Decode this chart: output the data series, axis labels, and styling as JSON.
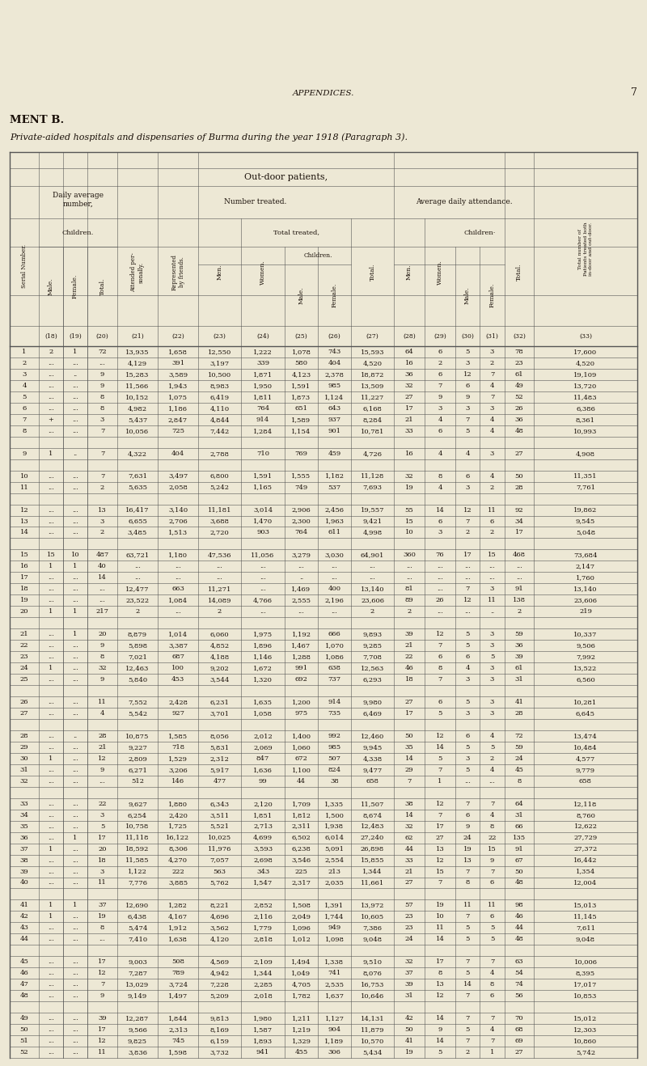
{
  "page_num": "7",
  "title_top": "APPENDICES.",
  "title_left": "MENT B.",
  "subtitle": "Private-aided hospitals and dispensaries of Burma during the year 1918 (Paragraph 3).",
  "section_header": "Out-door patients.",
  "bg_color": "#ede8d5",
  "text_color": "#1a1009",
  "rows": [
    [
      "1",
      "2",
      "1",
      "72",
      "13,935",
      "1,658",
      "12,550",
      "1,222",
      "1,078",
      "743",
      "15,593",
      "64",
      "6",
      "5",
      "3",
      "78",
      "17,600"
    ],
    [
      "2",
      "...",
      "...",
      "...",
      "4,129",
      "391",
      "3,197",
      "339",
      "580",
      "404",
      "4,520",
      "16",
      "2",
      "3",
      "2",
      "23",
      "4,520"
    ],
    [
      "3",
      "...",
      "..",
      "9",
      "15,283",
      "3,589",
      "10,500",
      "1,871",
      "4,123",
      "2,378",
      "18,872",
      "36",
      "6",
      "12",
      "7",
      "61",
      "19,109"
    ],
    [
      "4",
      "...",
      "...",
      "9",
      "11,566",
      "1,943",
      "8,983",
      "1,950",
      "1,591",
      "985",
      "13,509",
      "32",
      "7",
      "6",
      "4",
      "49",
      "13,720"
    ],
    [
      "5",
      "...",
      "...",
      "8",
      "10,152",
      "1,075",
      "6,419",
      "1,811",
      "1,873",
      "1,124",
      "11,227",
      "27",
      "9",
      "9",
      "7",
      "52",
      "11,483"
    ],
    [
      "6",
      "...",
      "...",
      "8",
      "4,982",
      "1,186",
      "4,110",
      "764",
      "651",
      "643",
      "6,168",
      "17",
      "3",
      "3",
      "3",
      "26",
      "6,386"
    ],
    [
      "7",
      "+",
      "...",
      "3",
      "5,437",
      "2,847",
      "4,844",
      "914",
      "1,589",
      "937",
      "8,284",
      "21",
      "4",
      "7",
      "4",
      "36",
      "8,361"
    ],
    [
      "8",
      "...",
      "...",
      "7",
      "10,056",
      "725",
      "7,442",
      "1,284",
      "1,154",
      "901",
      "10,781",
      "33",
      "6",
      "5",
      "4",
      "48",
      "10,993"
    ],
    [
      "",
      "",
      "",
      "",
      "",
      "",
      "",
      "",
      "",
      "",
      "",
      "",
      "",
      "",
      "",
      "",
      ""
    ],
    [
      "9",
      "1",
      "..",
      "7",
      "4,322",
      "404",
      "2,788",
      "710",
      "769",
      "459",
      "4,726",
      "16",
      "4",
      "4",
      "3",
      "27",
      "4,908"
    ],
    [
      "",
      "",
      "",
      "",
      "",
      "",
      "",
      "",
      "",
      "",
      "",
      "",
      "",
      "",
      "",
      "",
      ""
    ],
    [
      "10",
      "...",
      "...",
      "7",
      "7,631",
      "3,497",
      "6,800",
      "1,591",
      "1,555",
      "1,182",
      "11,128",
      "32",
      "8",
      "6",
      "4",
      "50",
      "11,351"
    ],
    [
      "11",
      "...",
      "...",
      "2",
      "5,635",
      "2,058",
      "5,242",
      "1,165",
      "749",
      "537",
      "7,693",
      "19",
      "4",
      "3",
      "2",
      "28",
      "7,761"
    ],
    [
      "",
      "",
      "",
      "",
      "",
      "",
      "",
      "",
      "",
      "",
      "",
      "",
      "",
      "",
      "",
      "",
      ""
    ],
    [
      "12",
      "...",
      "...",
      "13",
      "16,417",
      "3,140",
      "11,181",
      "3,014",
      "2,906",
      "2,456",
      "19,557",
      "55",
      "14",
      "12",
      "11",
      "92",
      "19,862"
    ],
    [
      "13",
      "...",
      "...",
      "3",
      "6,655",
      "2,706",
      "3,688",
      "1,470",
      "2,300",
      "1,963",
      "9,421",
      "15",
      "6",
      "7",
      "6",
      "34",
      "9,545"
    ],
    [
      "14",
      "...",
      "...",
      "2",
      "3,485",
      "1,513",
      "2,720",
      "903",
      "764",
      "611",
      "4,998",
      "10",
      "3",
      "2",
      "2",
      "17",
      "5,048"
    ],
    [
      "",
      "",
      "",
      "",
      "",
      "",
      "",
      "",
      "",
      "",
      "",
      "",
      "",
      "",
      "",
      "",
      ""
    ],
    [
      "15",
      "15",
      "10",
      "487",
      "63,721",
      "1,180",
      "47,536",
      "11,056",
      "3,279",
      "3,030",
      "64,901",
      "360",
      "76",
      "17",
      "15",
      "468",
      "73,684"
    ],
    [
      "16",
      "1",
      "1",
      "40",
      "...",
      "...",
      "...",
      "...",
      "...",
      "...",
      "...",
      "...",
      "...",
      "...",
      "...",
      "...",
      "2,147"
    ],
    [
      "17",
      "...",
      "...",
      "14",
      "...",
      "...",
      "...",
      "...",
      "..",
      "...",
      "...",
      "...",
      "...",
      "...",
      "...",
      "...",
      "1,760"
    ],
    [
      "18",
      "...",
      "...",
      "...",
      "12,477",
      "663",
      "11,271",
      "...",
      "1,469",
      "400",
      "13,140",
      "81",
      "...",
      "7",
      "3",
      "91",
      "13,140"
    ],
    [
      "19",
      "...",
      "...",
      "...",
      "23,522",
      "1,084",
      "14,089",
      "4,766",
      "2,555",
      "2,196",
      "23,606",
      "89",
      "26",
      "12",
      "11",
      "138",
      "23,606"
    ],
    [
      "20",
      "1",
      "1",
      "217",
      "2",
      "...",
      "2",
      "...",
      "...",
      "...",
      "2",
      "2",
      "...",
      "...",
      "..",
      "2",
      "219"
    ],
    [
      "",
      "",
      "",
      "",
      "",
      "",
      "",
      "",
      "",
      "",
      "",
      "",
      "",
      "",
      "",
      "",
      ""
    ],
    [
      "21",
      "...",
      "1",
      "20",
      "8,879",
      "1,014",
      "6,060",
      "1,975",
      "1,192",
      "666",
      "9,893",
      "39",
      "12",
      "5",
      "3",
      "59",
      "10,337"
    ],
    [
      "22",
      "...",
      "...",
      "9",
      "5,898",
      "3,387",
      "4,852",
      "1,896",
      "1,467",
      "1,070",
      "9,285",
      "21",
      "7",
      "5",
      "3",
      "36",
      "9,506"
    ],
    [
      "23",
      "...",
      "...",
      "8",
      "7,021",
      "687",
      "4,188",
      "1,146",
      "1,288",
      "1,086",
      "7,708",
      "22",
      "6",
      "6",
      "5",
      "39",
      "7,992"
    ],
    [
      "24",
      "1",
      "...",
      "32",
      "12,463",
      "100",
      "9,202",
      "1,672",
      "991",
      "638",
      "12,563",
      "46",
      "8",
      "4",
      "3",
      "61",
      "13,522"
    ],
    [
      "25",
      "...",
      "...",
      "9",
      "5,840",
      "453",
      "3,544",
      "1,320",
      "692",
      "737",
      "6,293",
      "18",
      "7",
      "3",
      "3",
      "31",
      "6,560"
    ],
    [
      "",
      "",
      "",
      "",
      "",
      "",
      "",
      "",
      "",
      "",
      "",
      "",
      "",
      "",
      "",
      "",
      ""
    ],
    [
      "26",
      "...",
      "...",
      "11",
      "7,552",
      "2,428",
      "6,231",
      "1,635",
      "1,200",
      "914",
      "9,980",
      "27",
      "6",
      "5",
      "3",
      "41",
      "10,281"
    ],
    [
      "27",
      "...",
      "...",
      "4",
      "5,542",
      "927",
      "3,701",
      "1,058",
      "975",
      "735",
      "6,469",
      "17",
      "5",
      "3",
      "3",
      "28",
      "6,645"
    ],
    [
      "",
      "",
      "",
      "",
      "",
      "",
      "",
      "",
      "",
      "",
      "",
      "",
      "",
      "",
      "",
      "",
      ""
    ],
    [
      "28",
      "...",
      "..",
      "28",
      "10,875",
      "1,585",
      "8,056",
      "2,012",
      "1,400",
      "992",
      "12,460",
      "50",
      "12",
      "6",
      "4",
      "72",
      "13,474"
    ],
    [
      "29",
      "...",
      "...",
      "21",
      "9,227",
      "718",
      "5,831",
      "2,069",
      "1,060",
      "985",
      "9,945",
      "35",
      "14",
      "5",
      "5",
      "59",
      "10,484"
    ],
    [
      "30",
      "1",
      "...",
      "12",
      "2,809",
      "1,529",
      "2,312",
      "847",
      "672",
      "507",
      "4,338",
      "14",
      "5",
      "3",
      "2",
      "24",
      "4,577"
    ],
    [
      "31",
      "...",
      "...",
      "9",
      "6,271",
      "3,206",
      "5,917",
      "1,636",
      "1,100",
      "824",
      "9,477",
      "29",
      "7",
      "5",
      "4",
      "45",
      "9,779"
    ],
    [
      "32",
      "...",
      "...",
      "...",
      "512",
      "146",
      "477",
      "99",
      "44",
      "38",
      "658",
      "7",
      "1",
      "...",
      "...",
      "8",
      "658"
    ],
    [
      "",
      "",
      "",
      "",
      "",
      "",
      "",
      "",
      "",
      "",
      "",
      "",
      "",
      "",
      "",
      "",
      ""
    ],
    [
      "33",
      "...",
      "...",
      "22",
      "9,627",
      "1,880",
      "6,343",
      "2,120",
      "1,709",
      "1,335",
      "11,507",
      "38",
      "12",
      "7",
      "7",
      "64",
      "12,118"
    ],
    [
      "34",
      "...",
      "...",
      "3",
      "6,254",
      "2,420",
      "3,511",
      "1,851",
      "1,812",
      "1,500",
      "8,674",
      "14",
      "7",
      "6",
      "4",
      "31",
      "8,760"
    ],
    [
      "35",
      "...",
      "...",
      "5",
      "10,758",
      "1,725",
      "5,521",
      "2,713",
      "2,311",
      "1,938",
      "12,483",
      "32",
      "17",
      "9",
      "8",
      "66",
      "12,622"
    ],
    [
      "36",
      "...",
      "1",
      "17",
      "11,118",
      "16,122",
      "10,025",
      "4,699",
      "6,502",
      "6,014",
      "27,240",
      "62",
      "27",
      "24",
      "22",
      "135",
      "27,729"
    ],
    [
      "37",
      "1",
      "...",
      "20",
      "18,592",
      "8,306",
      "11,976",
      "3,593",
      "6,238",
      "5,091",
      "26,898",
      "44",
      "13",
      "19",
      "15",
      "91",
      "27,372"
    ],
    [
      "38",
      "...",
      "...",
      "18",
      "11,585",
      "4,270",
      "7,057",
      "2,698",
      "3,546",
      "2,554",
      "15,855",
      "33",
      "12",
      "13",
      "9",
      "67",
      "16,442"
    ],
    [
      "39",
      "...",
      "...",
      "3",
      "1,122",
      "222",
      "563",
      "343",
      "225",
      "213",
      "1,344",
      "21",
      "15",
      "7",
      "7",
      "50",
      "1,354"
    ],
    [
      "40",
      "...",
      "...",
      "11",
      "7,776",
      "3,885",
      "5,762",
      "1,547",
      "2,317",
      "2,035",
      "11,661",
      "27",
      "7",
      "8",
      "6",
      "48",
      "12,004"
    ],
    [
      "",
      "",
      "",
      "",
      "",
      "",
      "",
      "",
      "",
      "",
      "",
      "",
      "",
      "",
      "",
      "",
      ""
    ],
    [
      "41",
      "1",
      "1",
      "37",
      "12,690",
      "1,282",
      "8,221",
      "2,852",
      "1,508",
      "1,391",
      "13,972",
      "57",
      "19",
      "11",
      "11",
      "98",
      "15,013"
    ],
    [
      "42",
      "1",
      "...",
      "19",
      "6,438",
      "4,167",
      "4,696",
      "2,116",
      "2,049",
      "1,744",
      "10,605",
      "23",
      "10",
      "7",
      "6",
      "46",
      "11,145"
    ],
    [
      "43",
      "...",
      "...",
      "8",
      "5,474",
      "1,912",
      "3,562",
      "1,779",
      "1,096",
      "949",
      "7,386",
      "23",
      "11",
      "5",
      "5",
      "44",
      "7,611"
    ],
    [
      "44",
      "...",
      "...",
      "...",
      "7,410",
      "1,638",
      "4,120",
      "2,818",
      "1,012",
      "1,098",
      "9,048",
      "24",
      "14",
      "5",
      "5",
      "48",
      "9,048"
    ],
    [
      "",
      "",
      "",
      "",
      "",
      "",
      "",
      "",
      "",
      "",
      "",
      "",
      "",
      "",
      "",
      "",
      ""
    ],
    [
      "45",
      "...",
      "...",
      "17",
      "9,003",
      "508",
      "4,569",
      "2,109",
      "1,494",
      "1,338",
      "9,510",
      "32",
      "17",
      "7",
      "7",
      "63",
      "10,006"
    ],
    [
      "46",
      "...",
      "...",
      "12",
      "7,287",
      "789",
      "4,942",
      "1,344",
      "1,049",
      "741",
      "8,076",
      "37",
      "8",
      "5",
      "4",
      "54",
      "8,395"
    ],
    [
      "47",
      "...",
      "...",
      "7",
      "13,029",
      "3,724",
      "7,228",
      "2,285",
      "4,705",
      "2,535",
      "16,753",
      "39",
      "13",
      "14",
      "8",
      "74",
      "17,017"
    ],
    [
      "48",
      "...",
      "...",
      "9",
      "9,149",
      "1,497",
      "5,209",
      "2,018",
      "1,782",
      "1,637",
      "10,646",
      "31",
      "12",
      "7",
      "6",
      "56",
      "10,853"
    ],
    [
      "",
      "",
      "",
      "",
      "",
      "",
      "",
      "",
      "",
      "",
      "",
      "",
      "",
      "",
      "",
      "",
      ""
    ],
    [
      "49",
      "...",
      "...",
      "39",
      "12,287",
      "1,844",
      "9,813",
      "1,980",
      "1,211",
      "1,127",
      "14,131",
      "42",
      "14",
      "7",
      "7",
      "70",
      "15,012"
    ],
    [
      "50",
      "...",
      "...",
      "17",
      "9,566",
      "2,313",
      "8,169",
      "1,587",
      "1,219",
      "904",
      "11,879",
      "50",
      "9",
      "5",
      "4",
      "68",
      "12,303"
    ],
    [
      "51",
      "...",
      "...",
      "12",
      "9,825",
      "745",
      "6,159",
      "1,893",
      "1,329",
      "1,189",
      "10,570",
      "41",
      "14",
      "7",
      "7",
      "69",
      "10,860"
    ],
    [
      "52",
      "...",
      "...",
      "11",
      "3,836",
      "1,598",
      "3,732",
      "941",
      "455",
      "306",
      "5,434",
      "19",
      "5",
      "2",
      "1",
      "27",
      "5,742"
    ]
  ]
}
